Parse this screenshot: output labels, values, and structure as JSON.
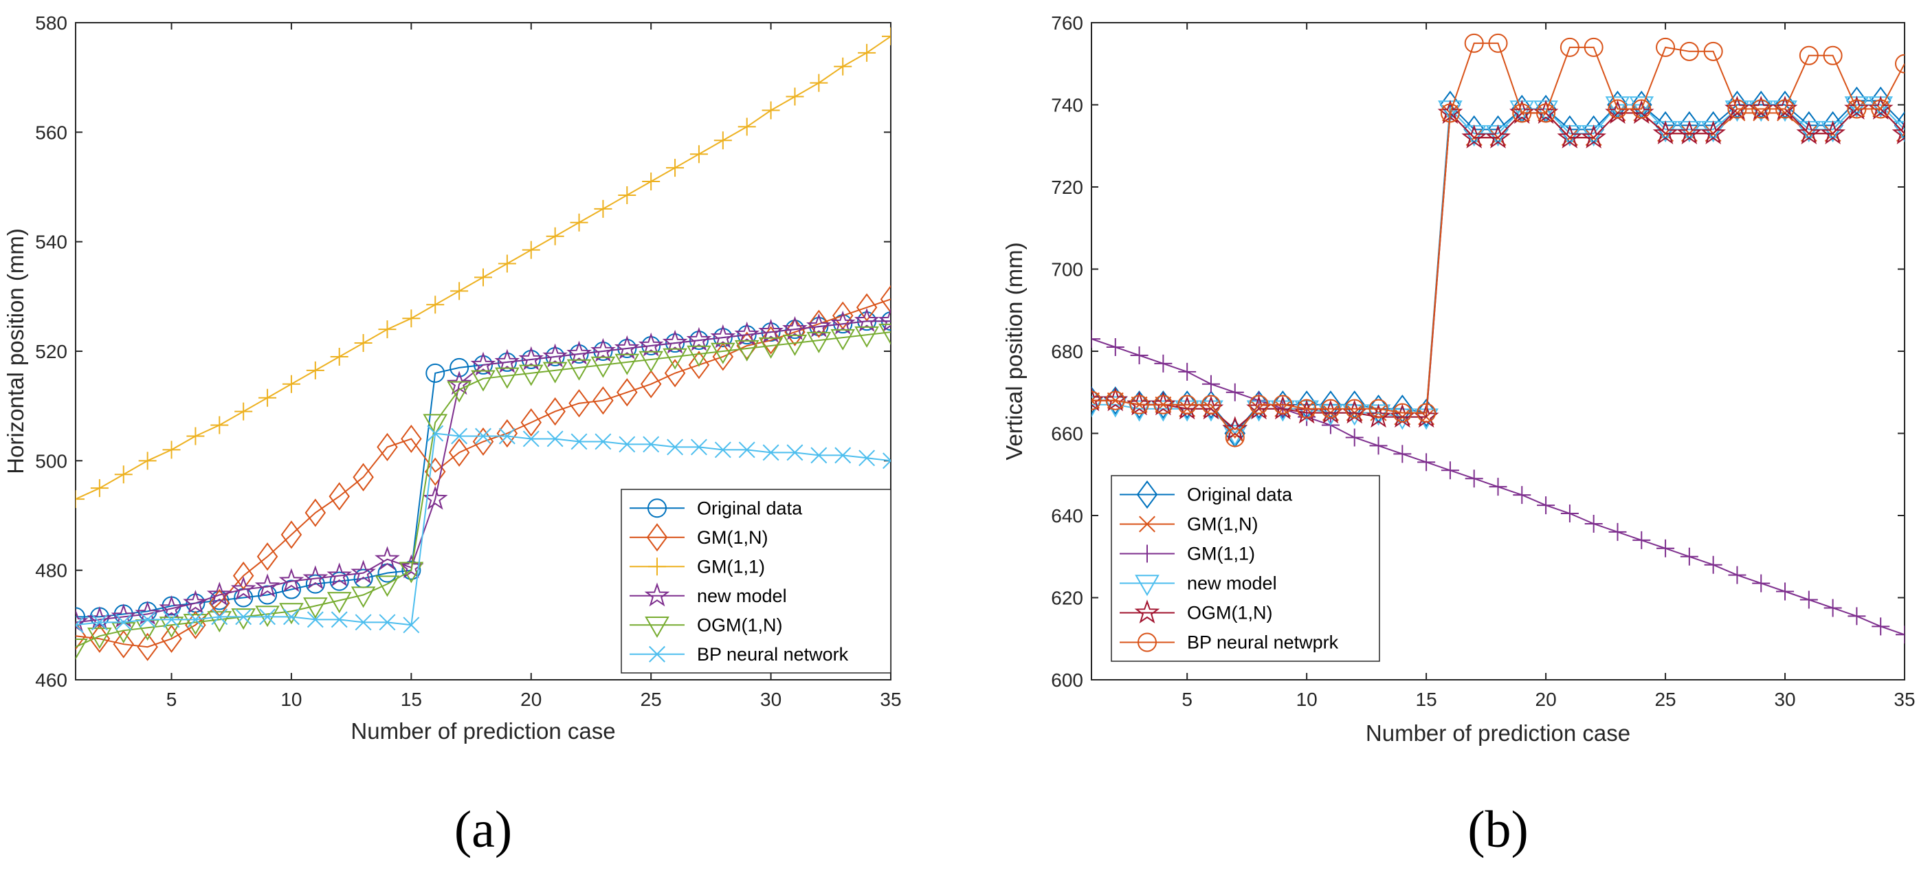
{
  "chart_data": [
    {
      "type": "line",
      "panel_label": "(a)",
      "xlabel": "Number of prediction case",
      "ylabel": "Horizontal position (mm)",
      "xlim": [
        1,
        35
      ],
      "ylim": [
        460,
        580
      ],
      "xticks": [
        5,
        10,
        15,
        20,
        25,
        30,
        35
      ],
      "yticks": [
        460,
        480,
        500,
        520,
        540,
        560,
        580
      ],
      "legend_position": "lower-right",
      "series": [
        {
          "name": "Original data",
          "color": "#0072BD",
          "marker": "circle",
          "values": [
            471.5,
            471.5,
            472,
            472.5,
            473.5,
            474,
            474.5,
            475,
            475.5,
            476.5,
            477.5,
            478,
            478.5,
            479.5,
            480,
            516,
            517,
            517.5,
            518,
            518.5,
            519,
            519.5,
            520,
            520.5,
            521,
            521.5,
            522,
            522.5,
            523,
            523.5,
            524,
            524.5,
            525,
            525.5,
            525.5
          ]
        },
        {
          "name": "GM(1,N)",
          "color": "#D95319",
          "marker": "diamond",
          "values": [
            468,
            467.5,
            466.5,
            466,
            467.5,
            470,
            474,
            479,
            482.5,
            486.5,
            490.5,
            493.5,
            497,
            502.5,
            504,
            498,
            501.5,
            503.5,
            505,
            507,
            509,
            510.5,
            511,
            512.5,
            514,
            516,
            517.5,
            519,
            521,
            522,
            523.5,
            525,
            526.5,
            528,
            529.5
          ]
        },
        {
          "name": "GM(1,1)",
          "color": "#EDB120",
          "marker": "plus",
          "values": [
            493,
            495,
            497.5,
            500,
            502,
            504.5,
            506.5,
            509,
            511.5,
            514,
            516.5,
            519,
            521.5,
            524,
            526,
            528.5,
            531,
            533.5,
            536,
            538.5,
            541,
            543.5,
            546,
            548.5,
            551,
            553.5,
            556,
            558.5,
            561,
            564,
            566.5,
            569,
            572,
            574.5,
            577.5
          ]
        },
        {
          "name": "new model",
          "color": "#7E2F8E",
          "marker": "star",
          "values": [
            470.5,
            471,
            471.5,
            472,
            473,
            474,
            475.5,
            476.5,
            477,
            478,
            478.5,
            479,
            479.5,
            482,
            480.5,
            493,
            514,
            517.5,
            518,
            518.5,
            519,
            519.5,
            520,
            520.5,
            521,
            521.5,
            522,
            522.5,
            523,
            523.5,
            524,
            524.5,
            525,
            525.5,
            525.5
          ]
        },
        {
          "name": "OGM(1,N)",
          "color": "#77AC30",
          "marker": "triangle-down",
          "values": [
            466,
            468,
            469,
            469.5,
            470,
            470.5,
            471,
            471.5,
            472,
            472.5,
            473.5,
            474.5,
            475.5,
            477.5,
            480,
            507,
            513,
            515,
            515.5,
            516,
            516.5,
            517,
            517.5,
            518,
            518.5,
            519,
            519.5,
            520,
            520.5,
            521,
            521.5,
            522,
            522.5,
            523,
            523.5
          ]
        },
        {
          "name": "BP neural network",
          "color": "#4DBEEE",
          "marker": "x",
          "values": [
            470,
            470.5,
            470.5,
            471,
            471,
            471,
            471.5,
            471.5,
            471.5,
            471.5,
            471,
            471,
            470.5,
            470.5,
            470,
            505,
            504.5,
            504.5,
            504.5,
            504,
            504,
            503.5,
            503.5,
            503,
            503,
            502.5,
            502.5,
            502,
            502,
            501.5,
            501.5,
            501,
            501,
            500.5,
            500
          ]
        }
      ]
    },
    {
      "type": "line",
      "panel_label": "(b)",
      "xlabel": "Number of prediction case",
      "ylabel": "Vertical position (mm)",
      "xlim": [
        1,
        35
      ],
      "ylim": [
        600,
        760
      ],
      "xticks": [
        5,
        10,
        15,
        20,
        25,
        30,
        35
      ],
      "yticks": [
        600,
        620,
        640,
        660,
        680,
        700,
        720,
        740,
        760
      ],
      "legend_position": "lower-left",
      "series": [
        {
          "name": "Original data",
          "color": "#0072BD",
          "marker": "diamond",
          "values": [
            668,
            668,
            667,
            667,
            667,
            667,
            660,
            667,
            667,
            667,
            667,
            667,
            666,
            666,
            665,
            740,
            734,
            734,
            739,
            739,
            734,
            734,
            740,
            740,
            735,
            735,
            735,
            740,
            740,
            740,
            735,
            735,
            741,
            741,
            735
          ]
        },
        {
          "name": "GM(1,N)",
          "color": "#D95319",
          "marker": "x",
          "values": [
            668,
            668,
            667,
            667,
            666,
            666,
            660,
            666,
            666,
            666,
            665,
            665,
            665,
            664,
            664,
            738,
            732,
            732,
            738,
            738,
            732,
            732,
            738,
            738,
            733,
            733,
            733,
            738,
            738,
            738,
            733,
            733,
            739,
            739,
            733
          ]
        },
        {
          "name": "GM(1,1)",
          "color": "#7E2F8E",
          "marker": "plus",
          "values": [
            683,
            681,
            679,
            677,
            675,
            672,
            670,
            668,
            666,
            664,
            662,
            659,
            657,
            655,
            653,
            651,
            649,
            647,
            645,
            642.5,
            640.5,
            638,
            636,
            634,
            632,
            630,
            628,
            625.5,
            623.5,
            621.5,
            619.5,
            617.5,
            615.5,
            613,
            611
          ]
        },
        {
          "name": "new model",
          "color": "#4DBEEE",
          "marker": "triangle-down",
          "values": [
            667,
            667,
            666,
            666,
            666,
            666,
            660,
            666,
            666,
            666,
            665,
            665,
            665,
            664,
            664,
            739,
            733,
            733,
            739,
            739,
            733,
            733,
            740,
            740,
            734,
            734,
            734,
            739,
            739,
            739,
            734,
            734,
            740,
            740,
            734
          ]
        },
        {
          "name": "OGM(1,N)",
          "color": "#A2142F",
          "marker": "star",
          "values": [
            668,
            668,
            667,
            667,
            666,
            666,
            661,
            666,
            666,
            665,
            665,
            665,
            664,
            664,
            664,
            738,
            732,
            732,
            738,
            738,
            732,
            732,
            738,
            738,
            733,
            733,
            733,
            739,
            739,
            739,
            733,
            733,
            739,
            739,
            733
          ]
        },
        {
          "name": "BP neural netwprk",
          "color": "#D95319",
          "marker": "circle",
          "values": [
            668,
            668,
            667,
            667,
            667,
            667,
            659,
            667,
            667,
            666,
            666,
            666,
            666,
            665,
            665,
            738,
            755,
            755,
            738,
            738,
            754,
            754,
            739,
            739,
            754,
            753,
            753,
            739,
            739,
            739,
            752,
            752,
            739,
            739,
            750
          ]
        }
      ]
    }
  ]
}
